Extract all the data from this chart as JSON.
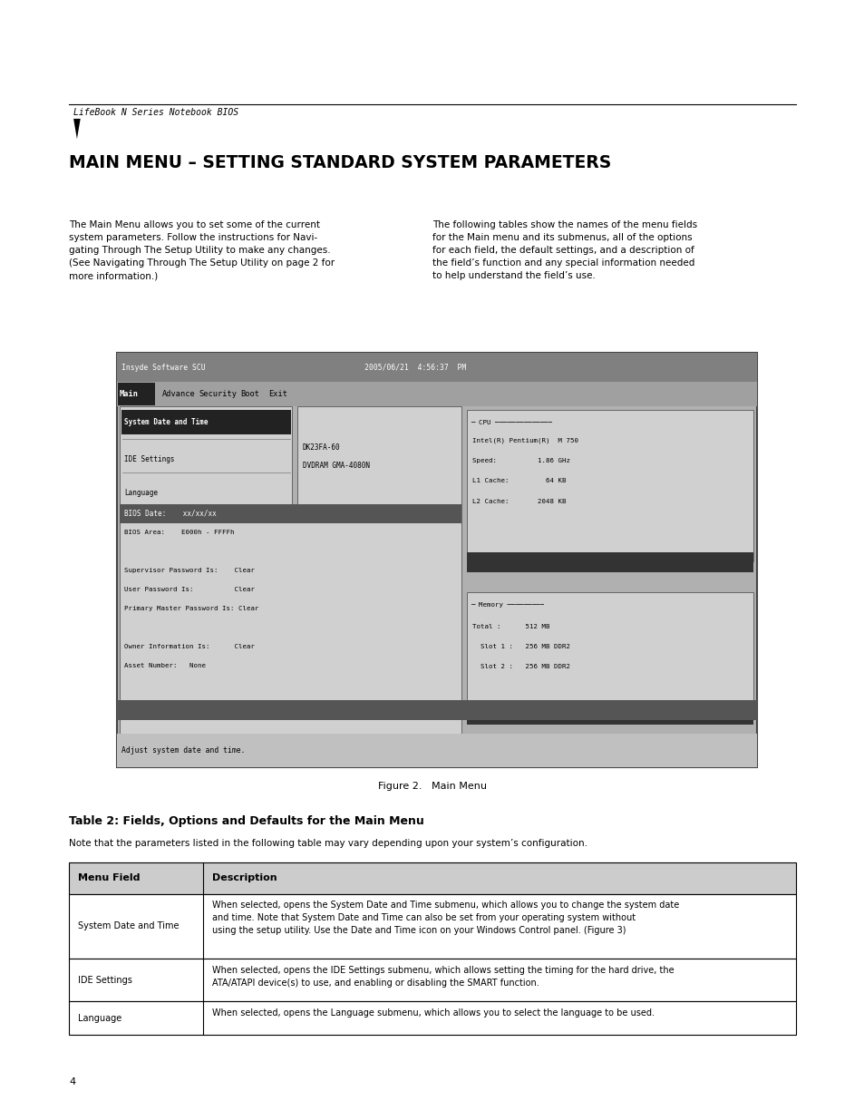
{
  "bg_color": "#ffffff",
  "page_width": 9.54,
  "page_height": 12.35,
  "header_italic": "LifeBook N Series Notebook BIOS",
  "title": "MAIN MENU – SETTING STANDARD SYSTEM PARAMETERS",
  "figure_caption": "Figure 2.   Main Menu",
  "table_title": "Table 2: Fields, Options and Defaults for the Main Menu",
  "table_note": "Note that the parameters listed in the following table may vary depending upon your system’s configuration.",
  "table_headers": [
    "Menu Field",
    "Description"
  ],
  "table_rows": [
    [
      "System Date and Time",
      "When selected, opens the System Date and Time submenu, which allows you to change the system date\nand time. Note that System Date and Time can also be set from your operating system without\nusing the setup utility. Use the Date and Time icon on your Windows Control panel. (Figure 3)"
    ],
    [
      "IDE Settings",
      "When selected, opens the IDE Settings submenu, which allows setting the timing for the hard drive, the\nATA/ATAPI device(s) to use, and enabling or disabling the SMART function."
    ],
    [
      "Language",
      "When selected, opens the Language submenu, which allows you to select the language to be used."
    ]
  ],
  "page_number": "4"
}
